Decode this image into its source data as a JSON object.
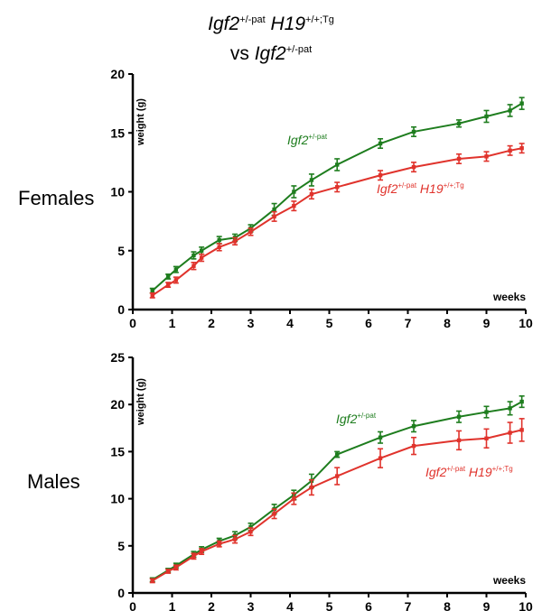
{
  "header": {
    "line1": {
      "gene1": "Igf2",
      "sup1": "+/-pat",
      "gene2": "H19",
      "sup2": "+/+;Tg"
    },
    "line2": {
      "prefix": "vs ",
      "gene": "Igf2",
      "sup": "+/-pat"
    }
  },
  "colors": {
    "control": "#1e7d1e",
    "transgenic": "#e0332c",
    "axis": "#000000"
  },
  "chart_data": [
    {
      "type": "line",
      "panel_label": "Females",
      "xlabel": "weeks",
      "ylabel": "weight (g)",
      "xlim": [
        0,
        10
      ],
      "ylim": [
        0,
        20
      ],
      "xticks": [
        0,
        1,
        2,
        3,
        4,
        5,
        6,
        7,
        8,
        9,
        10
      ],
      "yticks": [
        0,
        5,
        10,
        15,
        20
      ],
      "series": [
        {
          "name_gene": "Igf2",
          "name_sup": "+/-pat",
          "name_gene2": "",
          "name_sup2": "",
          "color_key": "control",
          "x": [
            0.5,
            0.9,
            1.1,
            1.55,
            1.75,
            2.2,
            2.6,
            3.0,
            3.6,
            4.1,
            4.55,
            5.2,
            6.3,
            7.15,
            8.3,
            9.0,
            9.6,
            9.9
          ],
          "y": [
            1.6,
            2.8,
            3.4,
            4.6,
            5.0,
            5.9,
            6.1,
            6.9,
            8.5,
            10.0,
            11.0,
            12.3,
            14.1,
            15.1,
            15.8,
            16.4,
            16.9,
            17.5
          ],
          "err": [
            0.2,
            0.2,
            0.25,
            0.3,
            0.3,
            0.3,
            0.3,
            0.3,
            0.5,
            0.5,
            0.5,
            0.5,
            0.4,
            0.4,
            0.3,
            0.5,
            0.5,
            0.5
          ]
        },
        {
          "name_gene": "Igf2",
          "name_sup": "+/-pat",
          "name_gene2": "H19",
          "name_sup2": "+/+;Tg",
          "color_key": "transgenic",
          "x": [
            0.5,
            0.9,
            1.1,
            1.55,
            1.75,
            2.2,
            2.6,
            3.0,
            3.6,
            4.1,
            4.55,
            5.2,
            6.3,
            7.15,
            8.3,
            9.0,
            9.6,
            9.9
          ],
          "y": [
            1.2,
            2.1,
            2.5,
            3.7,
            4.4,
            5.3,
            5.8,
            6.6,
            7.9,
            8.8,
            9.8,
            10.4,
            11.4,
            12.1,
            12.8,
            13.0,
            13.5,
            13.7
          ],
          "err": [
            0.2,
            0.2,
            0.25,
            0.3,
            0.3,
            0.3,
            0.3,
            0.3,
            0.4,
            0.4,
            0.4,
            0.4,
            0.4,
            0.4,
            0.4,
            0.4,
            0.4,
            0.4
          ]
        }
      ],
      "legend": [
        {
          "gene": "Igf2",
          "sup": "+/-pat",
          "gene2": "",
          "sup2": "",
          "color_key": "control"
        },
        {
          "gene": "Igf2",
          "sup": "+/-pat",
          "gene2": "H19",
          "sup2": "+/+;Tg",
          "color_key": "transgenic"
        }
      ],
      "grid": false
    },
    {
      "type": "line",
      "panel_label": "Males",
      "xlabel": "weeks",
      "ylabel": "weight (g)",
      "xlim": [
        0,
        10
      ],
      "ylim": [
        0,
        25
      ],
      "xticks": [
        0,
        1,
        2,
        3,
        4,
        5,
        6,
        7,
        8,
        9,
        10
      ],
      "yticks": [
        0,
        5,
        10,
        15,
        20,
        25
      ],
      "series": [
        {
          "name_gene": "Igf2",
          "name_sup": "+/-pat",
          "name_gene2": "",
          "name_sup2": "",
          "color_key": "control",
          "x": [
            0.5,
            0.9,
            1.1,
            1.55,
            1.75,
            2.2,
            2.6,
            3.0,
            3.6,
            4.1,
            4.55,
            5.2,
            6.3,
            7.15,
            8.3,
            9.0,
            9.6,
            9.9
          ],
          "y": [
            1.4,
            2.4,
            2.9,
            4.1,
            4.6,
            5.5,
            6.1,
            7.0,
            8.9,
            10.4,
            11.9,
            14.7,
            16.5,
            17.7,
            18.7,
            19.2,
            19.6,
            20.3
          ],
          "err": [
            0.2,
            0.2,
            0.25,
            0.3,
            0.3,
            0.3,
            0.4,
            0.4,
            0.5,
            0.5,
            0.7,
            0.3,
            0.6,
            0.6,
            0.6,
            0.6,
            0.7,
            0.6
          ]
        },
        {
          "name_gene": "Igf2",
          "name_sup": "+/-pat",
          "name_gene2": "H19",
          "name_sup2": "+/+;Tg",
          "color_key": "transgenic",
          "x": [
            0.5,
            0.9,
            1.1,
            1.55,
            1.75,
            2.2,
            2.6,
            3.0,
            3.6,
            4.1,
            4.55,
            5.2,
            6.3,
            7.15,
            8.3,
            9.0,
            9.6,
            9.9
          ],
          "y": [
            1.3,
            2.3,
            2.7,
            3.9,
            4.4,
            5.2,
            5.7,
            6.5,
            8.4,
            10.0,
            11.2,
            12.4,
            14.3,
            15.6,
            16.2,
            16.4,
            17.0,
            17.3
          ],
          "err": [
            0.2,
            0.2,
            0.25,
            0.3,
            0.3,
            0.3,
            0.4,
            0.4,
            0.5,
            0.6,
            0.8,
            0.9,
            1.0,
            0.9,
            1.0,
            1.0,
            1.1,
            1.2
          ]
        }
      ],
      "legend": [
        {
          "gene": "Igf2",
          "sup": "+/-pat",
          "gene2": "",
          "sup2": "",
          "color_key": "control"
        },
        {
          "gene": "Igf2",
          "sup": "+/-pat",
          "gene2": "H19",
          "sup2": "+/+;Tg",
          "color_key": "transgenic"
        }
      ],
      "grid": false
    }
  ]
}
